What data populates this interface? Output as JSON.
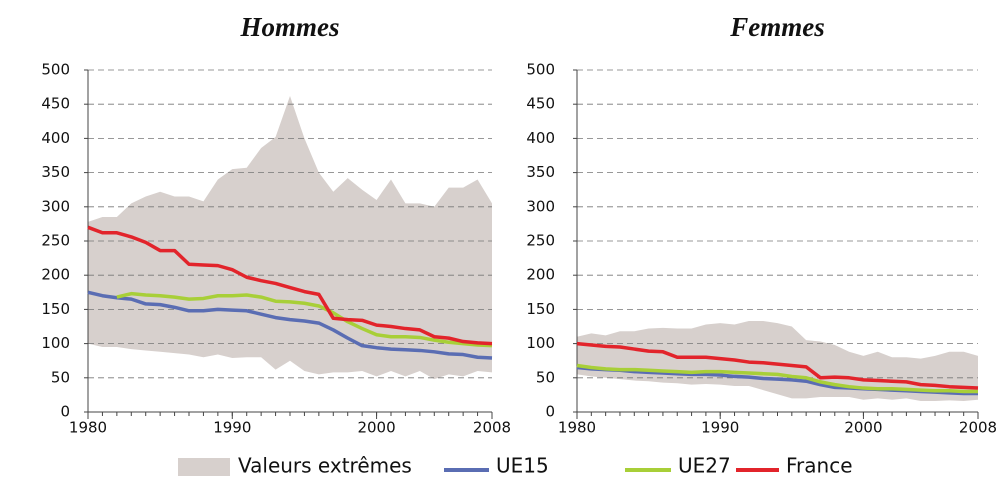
{
  "chart_data": [
    {
      "type": "line",
      "title": "Hommes",
      "x": [
        1980,
        1981,
        1982,
        1983,
        1984,
        1985,
        1986,
        1987,
        1988,
        1989,
        1990,
        1991,
        1992,
        1993,
        1994,
        1995,
        1996,
        1997,
        1998,
        1999,
        2000,
        2001,
        2002,
        2003,
        2004,
        2005,
        2006,
        2007,
        2008
      ],
      "xlim": [
        1980,
        2008
      ],
      "xticks": [
        1980,
        1990,
        2000,
        2008
      ],
      "ylim": [
        0,
        500
      ],
      "yticks": [
        0,
        50,
        100,
        150,
        200,
        250,
        300,
        350,
        400,
        450,
        500
      ],
      "grid": true,
      "band": {
        "name": "Valeurs extrêmes",
        "color": "#d7d0cd",
        "upper": [
          278,
          285,
          285,
          305,
          315,
          322,
          315,
          315,
          308,
          340,
          355,
          357,
          386,
          402,
          462,
          400,
          350,
          322,
          342,
          325,
          310,
          340,
          305,
          305,
          300,
          328,
          328,
          340,
          305
        ],
        "lower": [
          100,
          95,
          95,
          92,
          90,
          88,
          86,
          84,
          80,
          84,
          79,
          80,
          80,
          62,
          75,
          60,
          55,
          58,
          58,
          60,
          52,
          60,
          52,
          60,
          48,
          55,
          52,
          60,
          58
        ]
      },
      "series": [
        {
          "name": "UE15",
          "color": "#5a6db3",
          "values": [
            175,
            170,
            167,
            165,
            158,
            157,
            153,
            148,
            148,
            150,
            149,
            148,
            143,
            138,
            135,
            133,
            130,
            120,
            108,
            97,
            94,
            92,
            91,
            90,
            88,
            85,
            84,
            80,
            79
          ]
        },
        {
          "name": "UE27",
          "color": "#a8cf38",
          "values": [
            null,
            null,
            168,
            173,
            171,
            170,
            168,
            165,
            166,
            170,
            170,
            171,
            168,
            162,
            161,
            159,
            155,
            145,
            132,
            122,
            113,
            110,
            110,
            109,
            105,
            102,
            100,
            98,
            97
          ]
        },
        {
          "name": "France",
          "color": "#e2242b",
          "values": [
            270,
            262,
            262,
            256,
            248,
            236,
            236,
            216,
            215,
            214,
            208,
            197,
            192,
            188,
            182,
            176,
            172,
            137,
            135,
            134,
            127,
            125,
            122,
            120,
            110,
            108,
            103,
            101,
            100
          ]
        }
      ]
    },
    {
      "type": "line",
      "title": "Femmes",
      "x": [
        1980,
        1981,
        1982,
        1983,
        1984,
        1985,
        1986,
        1987,
        1988,
        1989,
        1990,
        1991,
        1992,
        1993,
        1994,
        1995,
        1996,
        1997,
        1998,
        1999,
        2000,
        2001,
        2002,
        2003,
        2004,
        2005,
        2006,
        2007,
        2008
      ],
      "xlim": [
        1980,
        2008
      ],
      "xticks": [
        1980,
        1990,
        2000,
        2008
      ],
      "ylim": [
        0,
        500
      ],
      "yticks": [
        0,
        50,
        100,
        150,
        200,
        250,
        300,
        350,
        400,
        450,
        500
      ],
      "grid": true,
      "band": {
        "color": "#d7d0cd",
        "upper": [
          110,
          115,
          112,
          118,
          118,
          122,
          123,
          122,
          122,
          128,
          130,
          128,
          133,
          133,
          130,
          125,
          105,
          103,
          98,
          88,
          82,
          88,
          80,
          80,
          78,
          82,
          88,
          88,
          82
        ],
        "lower": [
          55,
          52,
          50,
          48,
          46,
          45,
          43,
          42,
          40,
          41,
          40,
          38,
          38,
          32,
          26,
          20,
          20,
          22,
          22,
          22,
          18,
          20,
          18,
          20,
          16,
          16,
          17,
          16,
          18
        ]
      },
      "series": [
        {
          "color": "#5a6db3",
          "values": [
            65,
            63,
            62,
            61,
            59,
            58,
            57,
            56,
            55,
            55,
            54,
            52,
            51,
            49,
            48,
            47,
            45,
            40,
            36,
            35,
            34,
            33,
            32,
            31,
            30,
            29,
            28,
            27,
            27
          ]
        },
        {
          "color": "#a8cf38",
          "values": [
            68,
            65,
            63,
            62,
            62,
            61,
            60,
            59,
            58,
            59,
            59,
            58,
            57,
            56,
            55,
            52,
            50,
            44,
            40,
            37,
            35,
            34,
            34,
            33,
            32,
            31,
            31,
            30,
            30
          ]
        },
        {
          "color": "#e2242b",
          "values": [
            100,
            98,
            96,
            95,
            92,
            89,
            88,
            80,
            80,
            80,
            78,
            76,
            73,
            72,
            70,
            68,
            66,
            50,
            51,
            50,
            47,
            46,
            45,
            44,
            40,
            39,
            37,
            36,
            35
          ]
        }
      ]
    }
  ]
}
